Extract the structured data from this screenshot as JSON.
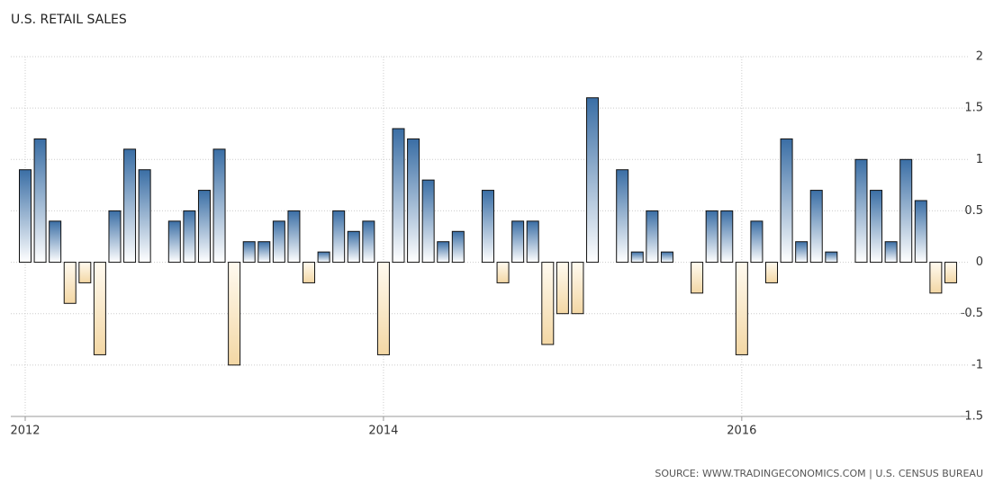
{
  "chart_data": {
    "type": "bar",
    "title": "U.S. RETAIL SALES",
    "source": "SOURCE: WWW.TRADINGECONOMICS.COM | U.S. CENSUS BUREAU",
    "categories": [
      "2012",
      null,
      null,
      null,
      null,
      null,
      null,
      null,
      null,
      null,
      null,
      null,
      null,
      null,
      null,
      null,
      null,
      null,
      null,
      null,
      null,
      null,
      null,
      null,
      "2014",
      null,
      null,
      null,
      null,
      null,
      null,
      null,
      null,
      null,
      null,
      null,
      null,
      null,
      null,
      null,
      null,
      null,
      null,
      null,
      null,
      null,
      null,
      null,
      "2016",
      null,
      null,
      null,
      null,
      null,
      null,
      null,
      null,
      null,
      null,
      null,
      null,
      null,
      null
    ],
    "values": [
      0.9,
      1.2,
      0.4,
      -0.4,
      -0.2,
      -0.9,
      0.5,
      1.1,
      0.9,
      0,
      0.4,
      0.5,
      0.7,
      1.1,
      -1.0,
      0.2,
      0.2,
      0.4,
      0.5,
      -0.2,
      0.1,
      0.5,
      0.3,
      0.4,
      -0.9,
      1.3,
      1.2,
      0.8,
      0.2,
      0.3,
      0,
      0.7,
      -0.2,
      0.4,
      0.4,
      -0.8,
      -0.5,
      -0.5,
      1.6,
      0,
      0.9,
      0.1,
      0.5,
      0.1,
      0,
      -0.3,
      0.5,
      0.5,
      -0.9,
      0.4,
      -0.2,
      1.2,
      0.2,
      0.7,
      0.1,
      0,
      1.0,
      0.7,
      0.2,
      1.0,
      0.6,
      -0.3,
      -0.2
    ],
    "colors": {
      "positive": "#3a6ea5",
      "negative": "#f3d7a4"
    },
    "ylim": [
      -1.5,
      2
    ],
    "yticks": [
      2,
      1.5,
      1,
      0.5,
      0,
      -0.5,
      -1,
      -1.5
    ],
    "grid": true
  }
}
